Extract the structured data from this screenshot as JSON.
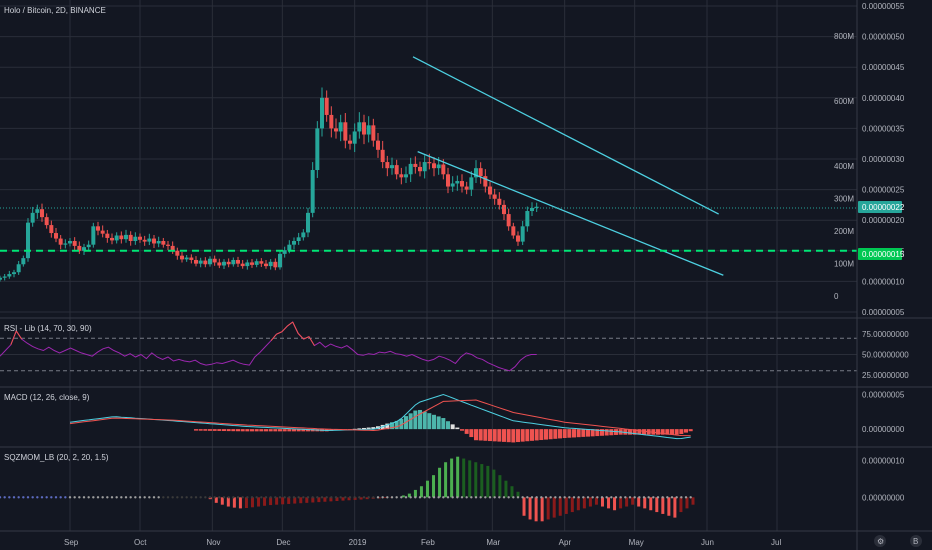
{
  "chart_data": [
    {
      "type": "candlestick",
      "title": "Holo / Bitcoin, 2D, BINANCE",
      "price_axis": [
        "0.00000055",
        "0.00000050",
        "0.00000045",
        "0.00000040",
        "0.00000035",
        "0.00000030",
        "0.00000025",
        "0.00000020",
        "0.00000015",
        "0.00000010",
        "0.00000005"
      ],
      "volume_axis": [
        "800M",
        "600M",
        "400M",
        "300M",
        "200M",
        "100M",
        "0"
      ],
      "x_labels": [
        "Sep",
        "Oct",
        "Nov",
        "Dec",
        "2019",
        "Feb",
        "Mar",
        "Apr",
        "May",
        "Jun",
        "Jul"
      ],
      "last_price_label": "0.00000022",
      "support_label": "0.00000015",
      "last_price": 2.2e-07,
      "support_price": 1.5e-07,
      "ylim": [
        5e-08,
        5.5e-07
      ],
      "colors": {
        "up": "#26a69a",
        "down": "#ef5350",
        "trend": "#4dd0e1",
        "support": "#00e676",
        "background": "#131722"
      },
      "trendlines": [
        {
          "x1": "2019-01-26",
          "y1": 4.67e-07,
          "x2": "2019-06-06",
          "y2": 2.1e-07
        },
        {
          "x1": "2019-01-28",
          "y1": 3.12e-07,
          "x2": "2019-06-08",
          "y2": 1.1e-07
        }
      ],
      "closes_2d": [
        1.06e-07,
        1.08e-07,
        1.12e-07,
        1.15e-07,
        1.28e-07,
        1.38e-07,
        1.96e-07,
        2.12e-07,
        2.18e-07,
        2.05e-07,
        1.92e-07,
        1.79e-07,
        1.7e-07,
        1.6e-07,
        1.62e-07,
        1.66e-07,
        1.58e-07,
        1.5e-07,
        1.56e-07,
        1.6e-07,
        1.9e-07,
        1.83e-07,
        1.78e-07,
        1.71e-07,
        1.67e-07,
        1.75e-07,
        1.69e-07,
        1.76e-07,
        1.66e-07,
        1.73e-07,
        1.68e-07,
        1.65e-07,
        1.7e-07,
        1.62e-07,
        1.66e-07,
        1.6e-07,
        1.58e-07,
        1.5e-07,
        1.42e-07,
        1.36e-07,
        1.39e-07,
        1.35e-07,
        1.29e-07,
        1.34e-07,
        1.28e-07,
        1.37e-07,
        1.31e-07,
        1.26e-07,
        1.32e-07,
        1.28e-07,
        1.35e-07,
        1.29e-07,
        1.25e-07,
        1.31e-07,
        1.27e-07,
        1.33e-07,
        1.29e-07,
        1.25e-07,
        1.32e-07,
        1.23e-07,
        1.45e-07,
        1.51e-07,
        1.6e-07,
        1.66e-07,
        1.72e-07,
        1.8e-07,
        2.12e-07,
        2.82e-07,
        3.5e-07,
        4e-07,
        3.72e-07,
        3.5e-07,
        3.45e-07,
        3.6e-07,
        3.3e-07,
        3.25e-07,
        3.45e-07,
        3.6e-07,
        3.4e-07,
        3.55e-07,
        3.3e-07,
        3.15e-07,
        2.95e-07,
        2.85e-07,
        2.9e-07,
        2.75e-07,
        2.7e-07,
        2.75e-07,
        2.92e-07,
        2.87e-07,
        2.8e-07,
        2.95e-07,
        2.93e-07,
        2.85e-07,
        2.91e-07,
        2.75e-07,
        2.55e-07,
        2.6e-07,
        2.64e-07,
        2.55e-07,
        2.5e-07,
        2.7e-07,
        2.85e-07,
        2.72e-07,
        2.55e-07,
        2.42e-07,
        2.35e-07,
        2.25e-07,
        2.1e-07,
        1.9e-07,
        1.75e-07,
        1.65e-07,
        1.9e-07,
        2.15e-07,
        2.2e-07,
        2.22e-07
      ]
    },
    {
      "type": "line",
      "title": "RSI - Lib (14, 70, 30, 90)",
      "y_axis": [
        "75.00000000",
        "50.00000000",
        "25.00000000"
      ],
      "ylim": [
        15,
        90
      ],
      "bands": [
        70,
        30
      ],
      "color": "#9c27b0",
      "values": [
        48,
        55,
        62,
        79,
        69,
        64,
        60,
        57,
        55,
        59,
        55,
        52,
        55,
        58,
        55,
        52,
        50,
        48,
        53,
        57,
        59,
        55,
        52,
        48,
        51,
        47,
        50,
        45,
        52,
        47,
        44,
        47,
        42,
        44,
        42,
        41,
        43,
        39,
        37,
        38,
        40,
        39,
        41,
        43,
        40,
        38,
        37,
        47,
        53,
        60,
        67,
        75,
        78,
        85,
        90,
        76,
        69,
        72,
        61,
        65,
        59,
        63,
        60,
        58,
        61,
        56,
        50,
        49,
        51,
        50,
        53,
        52,
        54,
        51,
        50,
        48,
        50,
        47,
        44,
        42,
        44,
        48,
        46,
        43,
        39,
        47,
        52,
        50,
        46,
        44,
        40,
        37,
        34,
        32,
        30,
        35,
        43,
        48,
        50,
        50
      ]
    },
    {
      "type": "line",
      "title": "MACD (12, 26, close, 9)",
      "y_axis": [
        "0.00000005",
        "0.00000000"
      ],
      "colors": {
        "macd": "#4dd0e1",
        "signal": "#ef5350",
        "hist_up": "#4db6ac",
        "hist_down": "#ef5350",
        "hist_neutral": "#e0e0e0"
      },
      "x": [
        "2018-09-01",
        "2018-09-20",
        "2018-10-15",
        "2018-11-15",
        "2018-12-20",
        "2019-01-10",
        "2019-01-20",
        "2019-01-28",
        "2019-02-08",
        "2019-02-22",
        "2019-03-10",
        "2019-04-01",
        "2019-04-25",
        "2019-05-10",
        "2019-05-20",
        "2019-05-28"
      ],
      "macd": [
        1e-08,
        1.8e-08,
        1.2e-08,
        4e-09,
        -2e-09,
        0.0,
        1.2e-08,
        3.8e-08,
        5e-08,
        3.2e-08,
        1.2e-08,
        2e-09,
        -4e-09,
        -1e-08,
        -1.4e-08,
        -1e-08
      ],
      "signal": [
        8e-09,
        1.6e-08,
        1.3e-08,
        6e-09,
        0.0,
        -2e-09,
        4e-09,
        2e-08,
        4e-08,
        4.2e-08,
        2.4e-08,
        1e-08,
        1e-09,
        -5e-09,
        -9e-09,
        -1e-08
      ]
    },
    {
      "type": "bar",
      "title": "SQZMOM_LB (20, 2, 20, 1.5)",
      "y_axis": [
        "0.00000010",
        "0.00000000"
      ],
      "colors": {
        "up_strong": "#4caf50",
        "up_weak": "#1b5e20",
        "down_strong": "#ef5350",
        "down_weak": "#8b1a1a",
        "squeeze_off": "#9e9e9e",
        "squeeze_on": "#5c6bc0"
      },
      "values": [
        0,
        0,
        0,
        0,
        0,
        0,
        0,
        -0.5,
        -1.5,
        -2,
        -2.5,
        -2.8,
        -3,
        -2.9,
        -2.7,
        -2.5,
        -2.3,
        -2.1,
        -2,
        -1.9,
        -1.8,
        -1.7,
        -1.6,
        -1.5,
        -1.4,
        -1.3,
        -1.2,
        -1.1,
        -1,
        -0.9,
        -0.8,
        -0.7,
        -0.6,
        -0.5,
        -0.4,
        -0.3,
        -0.2,
        -0.1,
        0,
        0.5,
        1,
        2,
        3,
        4.5,
        6,
        8,
        9.5,
        10.5,
        11,
        10.5,
        10,
        9.5,
        9,
        8.5,
        7.5,
        6,
        4.5,
        3,
        1.5,
        -5,
        -6,
        -6.5,
        -6.5,
        -6,
        -5.5,
        -5,
        -4.5,
        -4,
        -3.5,
        -3,
        -2.5,
        -2,
        -2.5,
        -3,
        -3.5,
        -3,
        -2.5,
        -2,
        -2.5,
        -3,
        -3.5,
        -4,
        -4.5,
        -5,
        -5.5,
        -4,
        -3,
        -2
      ]
    }
  ]
}
